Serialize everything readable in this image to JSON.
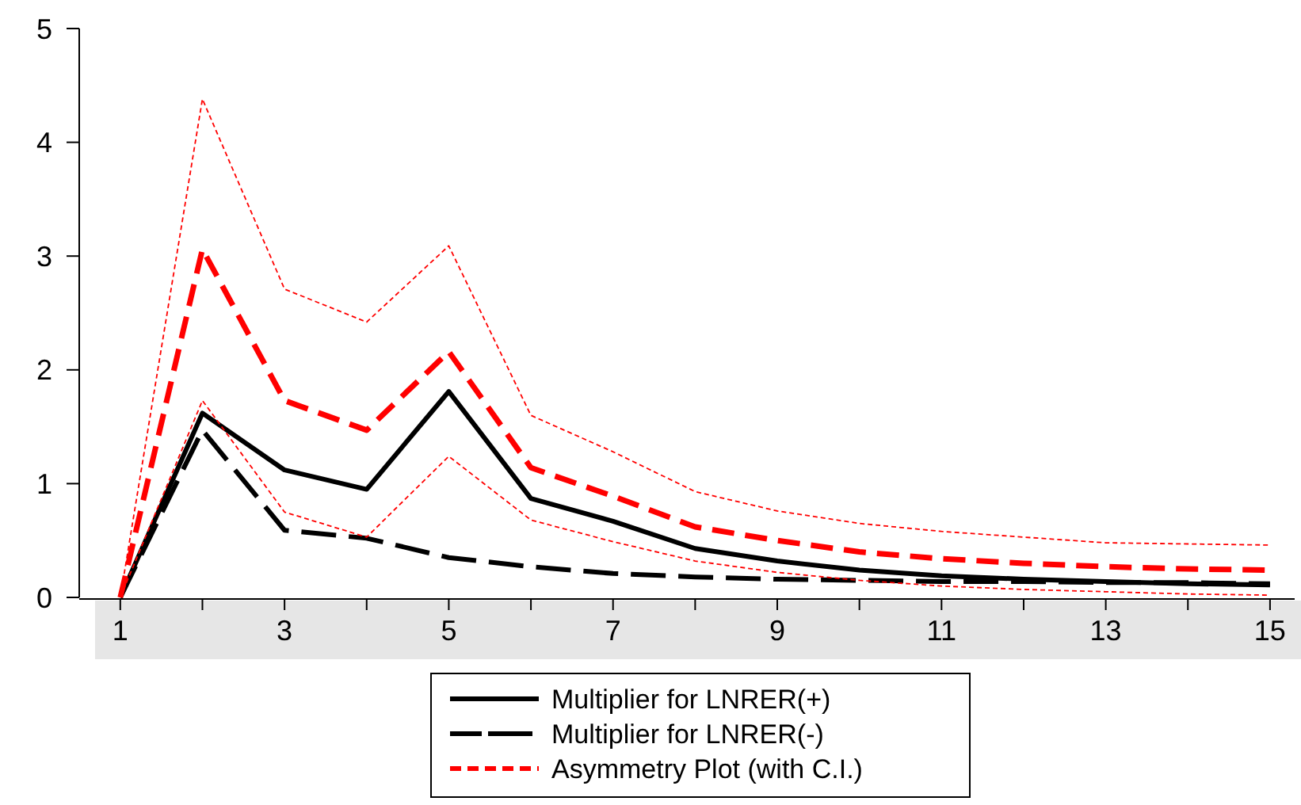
{
  "chart_data": {
    "type": "line",
    "x": [
      1,
      2,
      3,
      4,
      5,
      6,
      7,
      8,
      9,
      10,
      11,
      12,
      13,
      14,
      15
    ],
    "xlim": [
      0.5,
      15.3
    ],
    "xticks": [
      1,
      {
        "value": 2,
        "label": null
      },
      3,
      {
        "value": 4,
        "label": null
      },
      5,
      {
        "value": 6,
        "label": null
      },
      7,
      {
        "value": 8,
        "label": null
      },
      9,
      {
        "value": 10,
        "label": null
      },
      11,
      {
        "value": 12,
        "label": null
      },
      13,
      {
        "value": 14,
        "label": null
      },
      15
    ],
    "ylim": [
      0,
      5
    ],
    "yticks": [
      0,
      1,
      2,
      3,
      4,
      5
    ],
    "grid": false,
    "legend": "bottom",
    "series": [
      {
        "name": "Multiplier for LNRER(+)",
        "color": "#000000",
        "line_style": "solid",
        "values": [
          0,
          1.62,
          1.12,
          0.95,
          1.81,
          0.87,
          0.67,
          0.43,
          0.32,
          0.24,
          0.19,
          0.16,
          0.14,
          0.12,
          0.11
        ]
      },
      {
        "name": "Multiplier for LNRER(-)",
        "color": "#000000",
        "line_style": "dashed",
        "values": [
          0,
          1.47,
          0.59,
          0.52,
          0.35,
          0.27,
          0.21,
          0.18,
          0.16,
          0.15,
          0.14,
          0.14,
          0.13,
          0.13,
          0.12
        ]
      },
      {
        "name": "Asymmetry Plot (with C.I.)",
        "color": "#ff0000",
        "line_style": "dashed",
        "values": [
          0,
          3.06,
          1.73,
          1.47,
          2.16,
          1.14,
          0.89,
          0.62,
          0.5,
          0.4,
          0.34,
          0.3,
          0.27,
          0.25,
          0.24
        ]
      },
      {
        "color": "#ff0000",
        "line_style": "dotted",
        "values": [
          0,
          4.38,
          2.71,
          2.42,
          3.09,
          1.6,
          1.28,
          0.93,
          0.76,
          0.65,
          0.58,
          0.53,
          0.48,
          0.47,
          0.46
        ]
      },
      {
        "color": "#ff0000",
        "line_style": "dotted",
        "values": [
          0,
          1.73,
          0.75,
          0.53,
          1.24,
          0.68,
          0.49,
          0.32,
          0.22,
          0.15,
          0.1,
          0.07,
          0.05,
          0.03,
          0.02
        ]
      }
    ]
  }
}
